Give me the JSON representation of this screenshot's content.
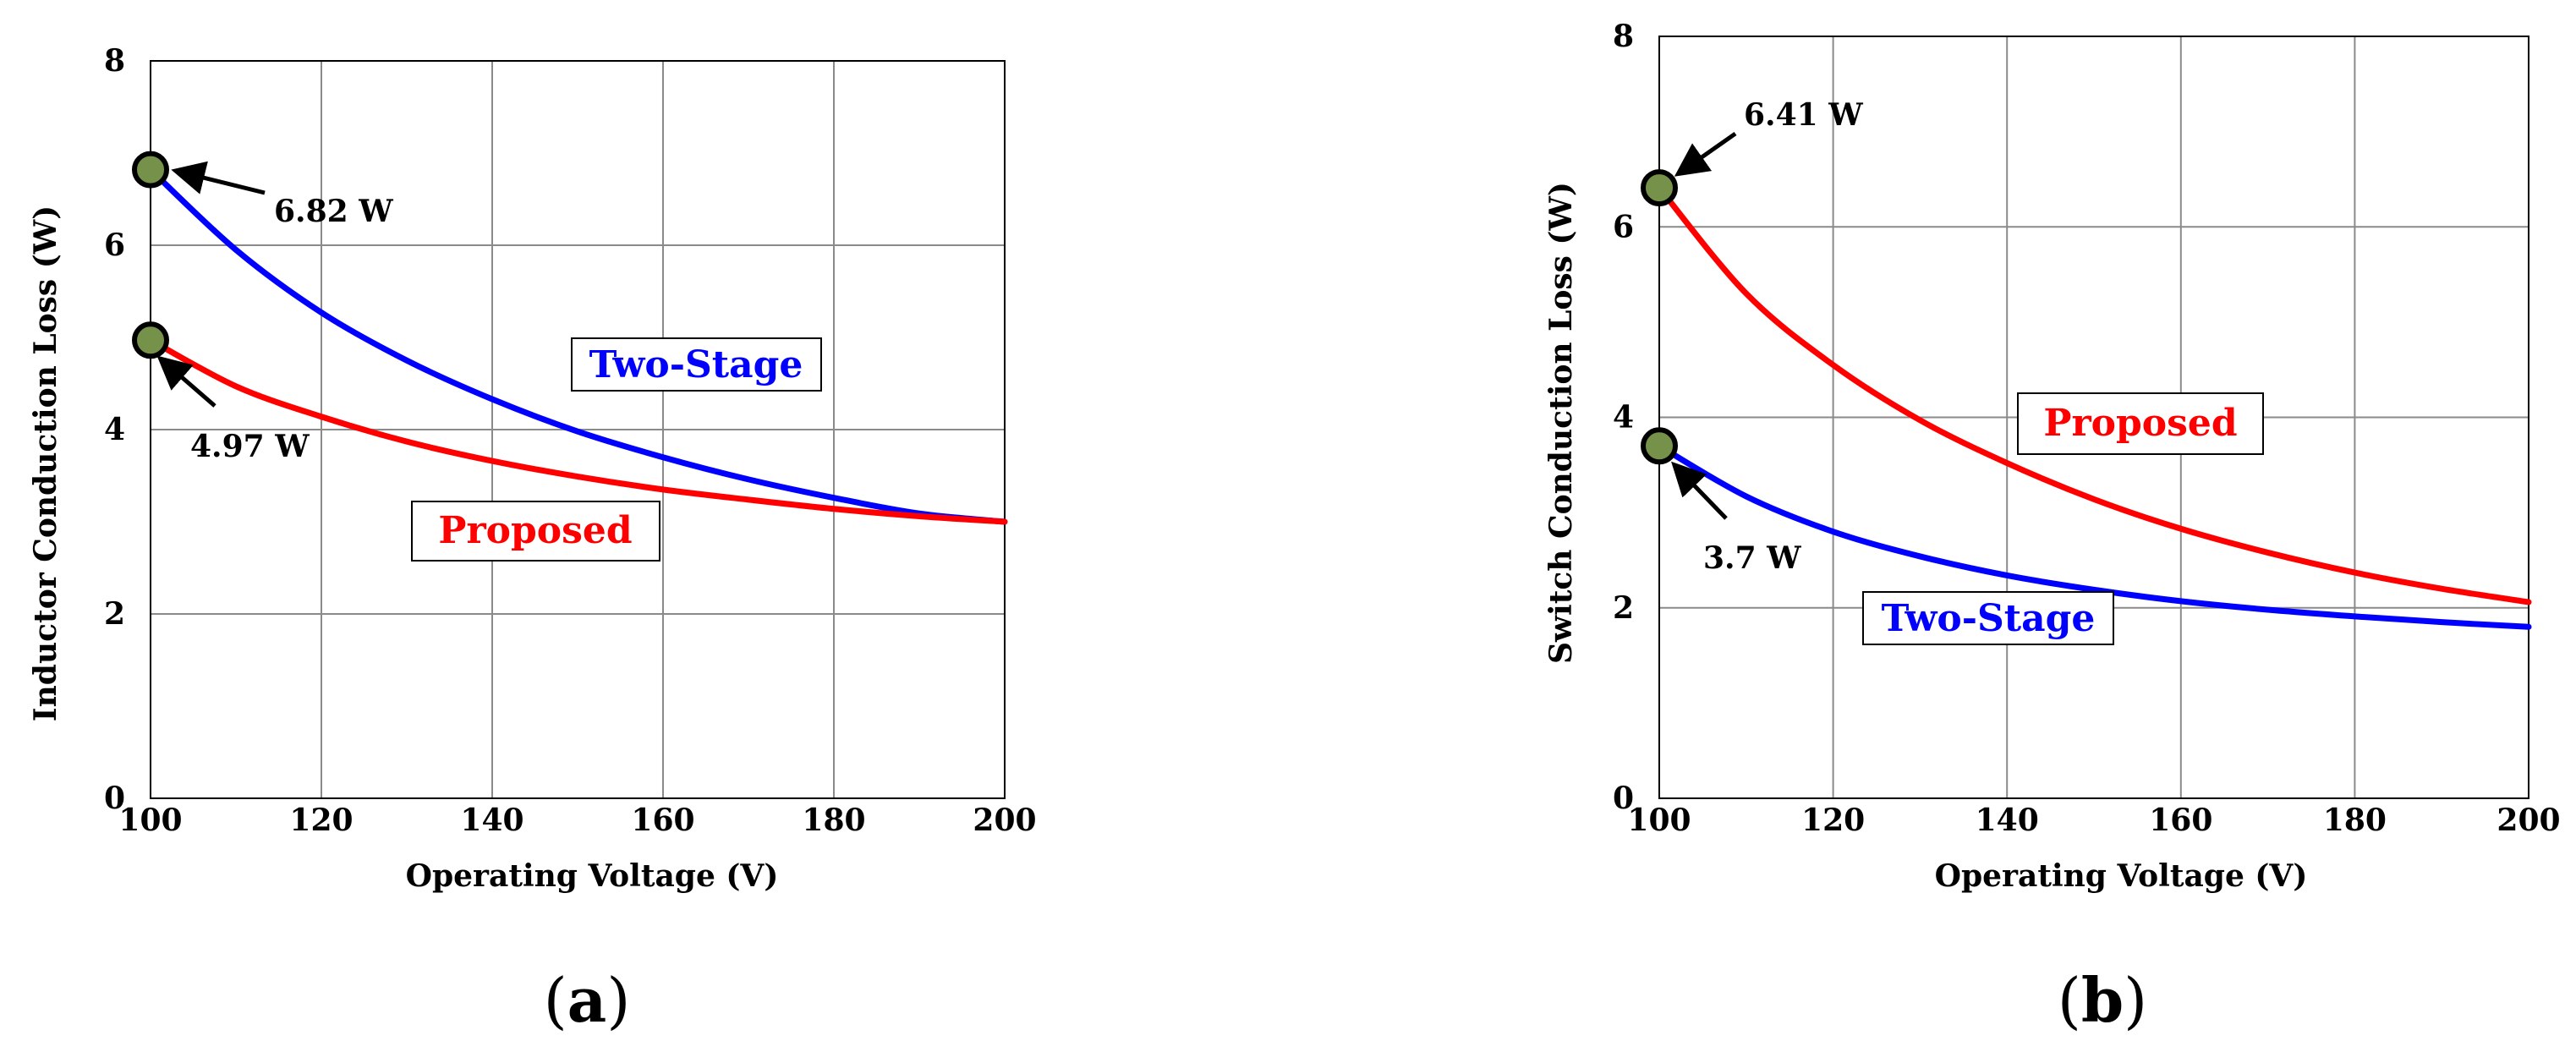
{
  "chart_data": [
    {
      "type": "line",
      "panel_label": "a",
      "xlabel": "Operating Voltage (V)",
      "ylabel": "Inductor Conduction Loss (W)",
      "xlim": [
        100,
        200
      ],
      "ylim": [
        0,
        8
      ],
      "xticks": [
        100,
        120,
        140,
        160,
        180,
        200
      ],
      "yticks": [
        0,
        2,
        4,
        6,
        8
      ],
      "grid": true,
      "series": [
        {
          "name": "Two-Stage",
          "color": "#0000ff",
          "x": [
            100,
            110,
            120,
            130,
            140,
            150,
            160,
            170,
            180,
            190,
            200
          ],
          "y": [
            6.82,
            5.95,
            5.27,
            4.75,
            4.33,
            3.98,
            3.7,
            3.46,
            3.26,
            3.09,
            3.0
          ]
        },
        {
          "name": "Proposed",
          "color": "#ff0000",
          "x": [
            100,
            110,
            120,
            130,
            140,
            150,
            160,
            170,
            180,
            190,
            200
          ],
          "y": [
            4.97,
            4.47,
            4.14,
            3.87,
            3.66,
            3.49,
            3.35,
            3.24,
            3.14,
            3.06,
            3.0
          ]
        }
      ],
      "markers": [
        {
          "x": 100,
          "y": 6.82,
          "label": "6.82 W"
        },
        {
          "x": 100,
          "y": 4.97,
          "label": "4.97 W"
        }
      ],
      "legend_labels": [
        {
          "text": "Two-Stage",
          "color": "#0000ff"
        },
        {
          "text": "Proposed",
          "color": "#ff0000"
        }
      ]
    },
    {
      "type": "line",
      "panel_label": "b",
      "xlabel": "Operating Voltage (V)",
      "ylabel": "Switch Conduction Loss (W)",
      "xlim": [
        100,
        200
      ],
      "ylim": [
        0,
        8
      ],
      "xticks": [
        100,
        120,
        140,
        160,
        180,
        200
      ],
      "yticks": [
        0,
        2,
        4,
        6,
        8
      ],
      "grid": true,
      "series": [
        {
          "name": "Proposed",
          "color": "#ff0000",
          "x": [
            100,
            110,
            120,
            130,
            140,
            150,
            160,
            170,
            180,
            190,
            200
          ],
          "y": [
            6.41,
            5.3,
            4.55,
            3.97,
            3.52,
            3.14,
            2.83,
            2.58,
            2.37,
            2.2,
            2.06
          ]
        },
        {
          "name": "Two-Stage",
          "color": "#0000ff",
          "x": [
            100,
            110,
            120,
            130,
            140,
            150,
            160,
            170,
            180,
            190,
            200
          ],
          "y": [
            3.7,
            3.17,
            2.8,
            2.54,
            2.34,
            2.19,
            2.07,
            1.98,
            1.91,
            1.85,
            1.8
          ]
        }
      ],
      "markers": [
        {
          "x": 100,
          "y": 6.41,
          "label": "6.41 W"
        },
        {
          "x": 100,
          "y": 3.7,
          "label": "3.7 W"
        }
      ],
      "legend_labels": [
        {
          "text": "Proposed",
          "color": "#ff0000"
        },
        {
          "text": "Two-Stage",
          "color": "#0000ff"
        }
      ]
    }
  ]
}
